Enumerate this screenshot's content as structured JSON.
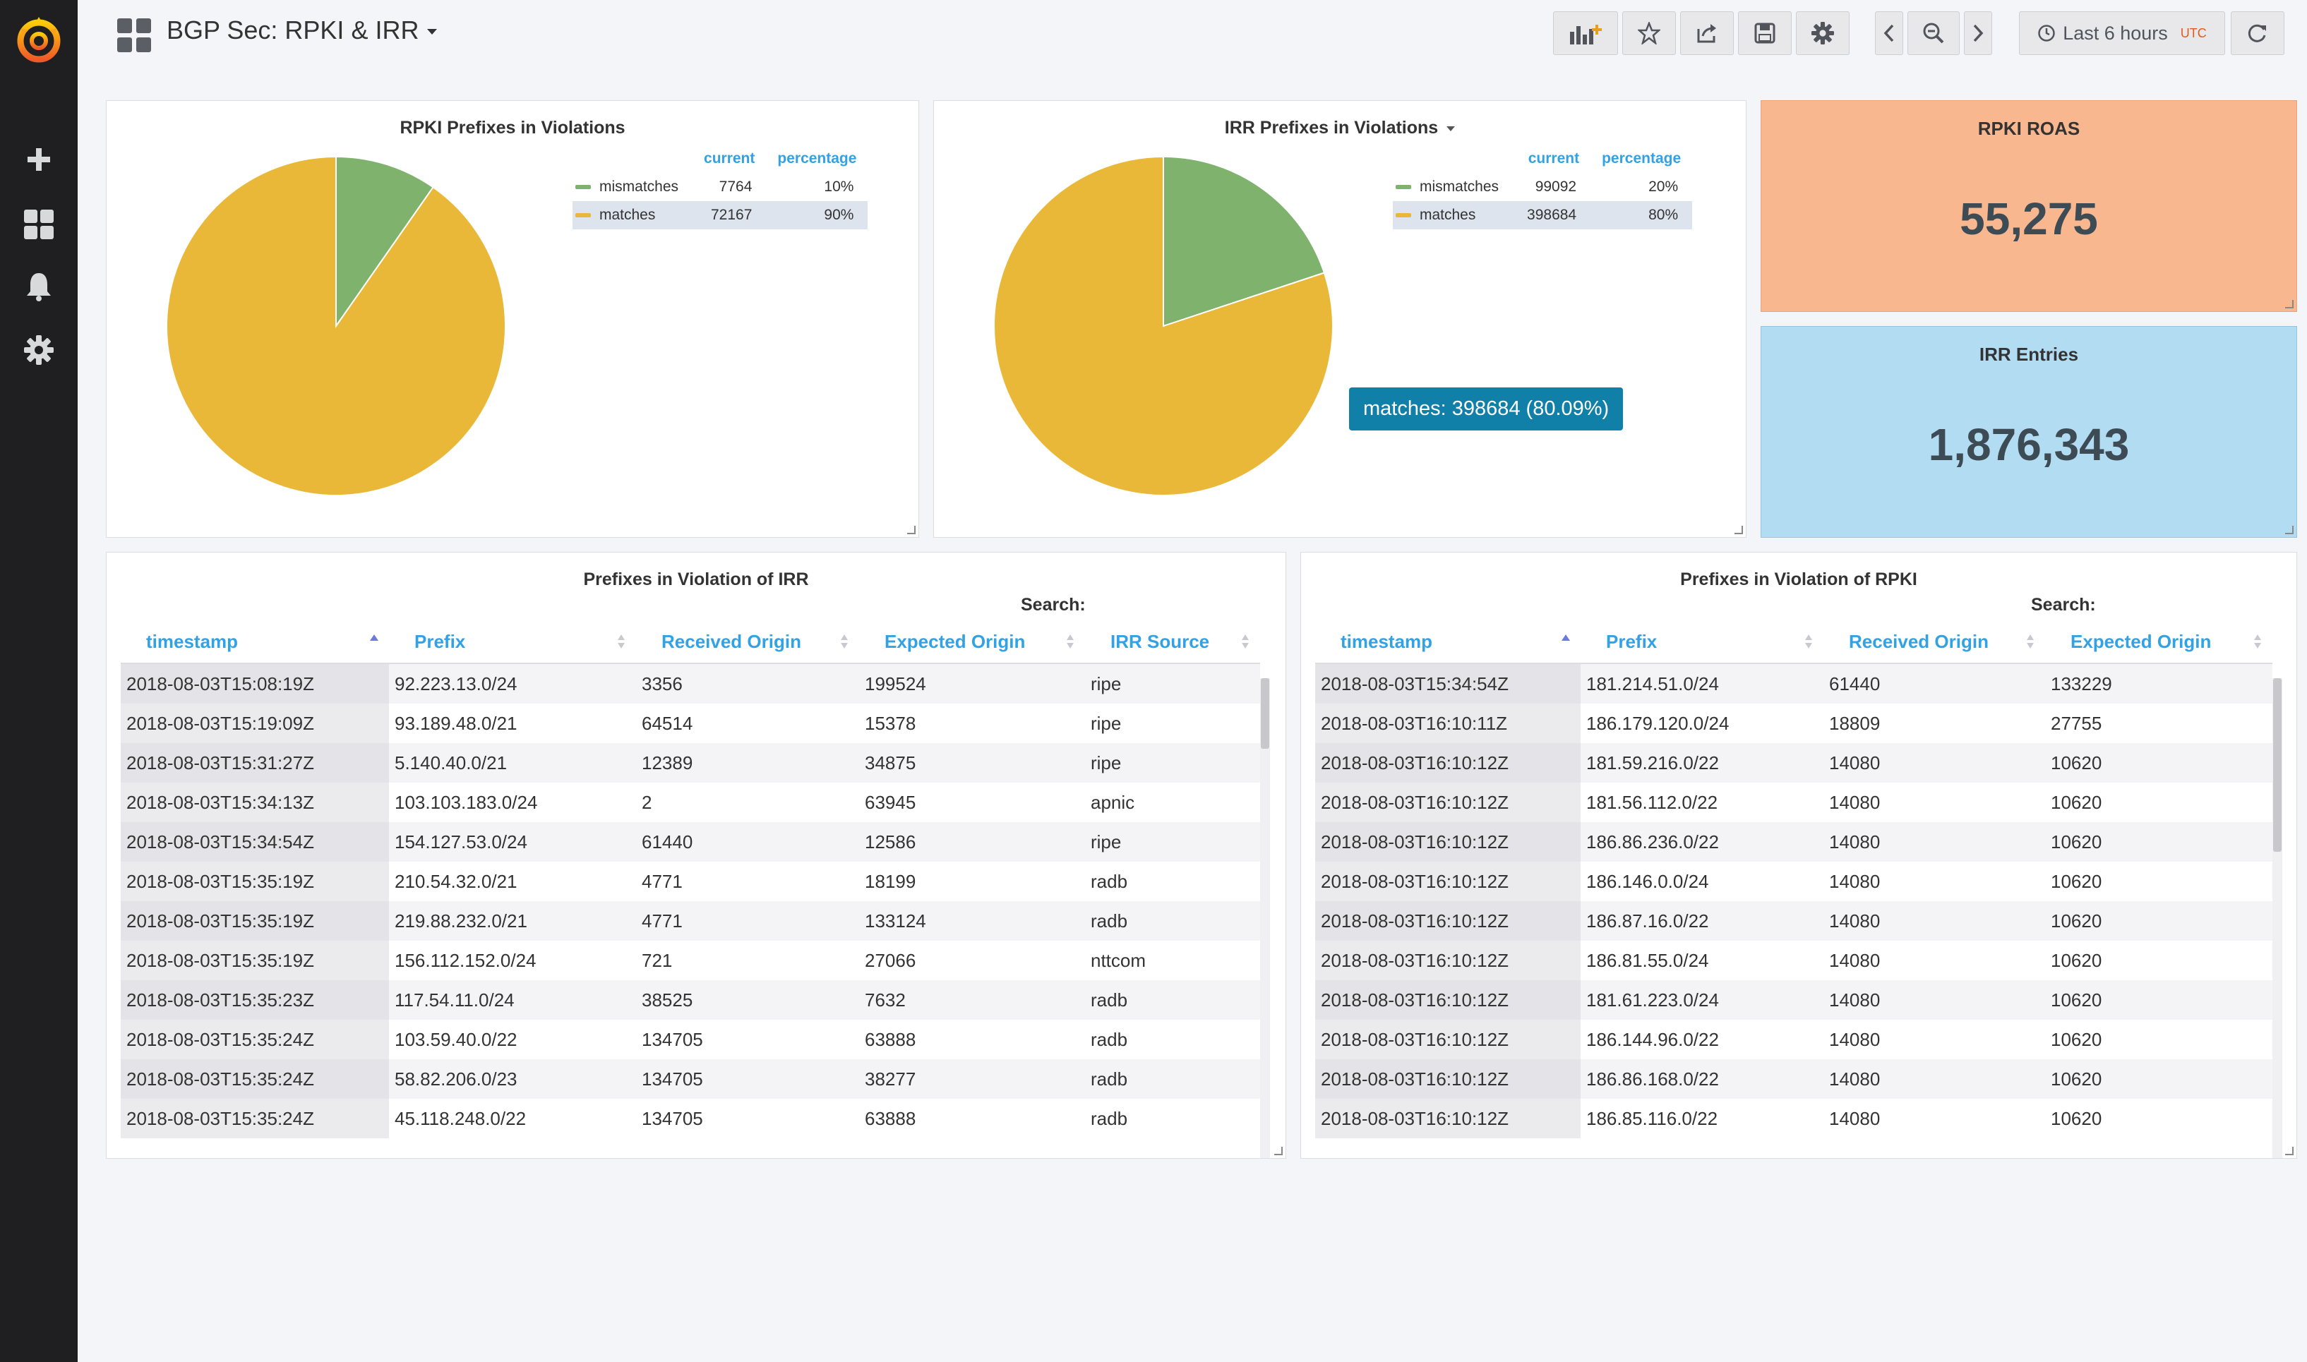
{
  "dashboard": {
    "title": "BGP Sec: RPKI & IRR"
  },
  "toolbar": {
    "time_range": "Last 6 hours",
    "timezone": "UTC"
  },
  "colors": {
    "mismatches": "#7eb26d",
    "matches": "#eab839",
    "accent": "#33a2e5"
  },
  "rpki_pie": {
    "title": "RPKI Prefixes in Violations",
    "col_current": "current",
    "col_percentage": "percentage",
    "chart_data": {
      "type": "pie",
      "slices": [
        {
          "name": "mismatches",
          "value": 7764,
          "percentage": "10%"
        },
        {
          "name": "matches",
          "value": 72167,
          "percentage": "90%"
        }
      ]
    }
  },
  "irr_pie": {
    "title": "IRR Prefixes in Violations",
    "col_current": "current",
    "col_percentage": "percentage",
    "tooltip": "matches: 398684 (80.09%)",
    "chart_data": {
      "type": "pie",
      "slices": [
        {
          "name": "mismatches",
          "value": 99092,
          "percentage": "20%"
        },
        {
          "name": "matches",
          "value": 398684,
          "percentage": "80%"
        }
      ]
    }
  },
  "rpki_roas": {
    "title": "RPKI ROAS",
    "value": "55,275",
    "color": "#f9b78f"
  },
  "irr_entries": {
    "title": "IRR Entries",
    "value": "1,876,343",
    "color": "#b2dcf2"
  },
  "irr_table": {
    "title": "Prefixes in Violation of IRR",
    "search_label": "Search:",
    "headers": [
      "timestamp",
      "Prefix",
      "Received Origin",
      "Expected Origin",
      "IRR Source"
    ],
    "rows": [
      [
        "2018-08-03T15:08:19Z",
        "92.223.13.0/24",
        "3356",
        "199524",
        "ripe"
      ],
      [
        "2018-08-03T15:19:09Z",
        "93.189.48.0/21",
        "64514",
        "15378",
        "ripe"
      ],
      [
        "2018-08-03T15:31:27Z",
        "5.140.40.0/21",
        "12389",
        "34875",
        "ripe"
      ],
      [
        "2018-08-03T15:34:13Z",
        "103.103.183.0/24",
        "2",
        "63945",
        "apnic"
      ],
      [
        "2018-08-03T15:34:54Z",
        "154.127.53.0/24",
        "61440",
        "12586",
        "ripe"
      ],
      [
        "2018-08-03T15:35:19Z",
        "210.54.32.0/21",
        "4771",
        "18199",
        "radb"
      ],
      [
        "2018-08-03T15:35:19Z",
        "219.88.232.0/21",
        "4771",
        "133124",
        "radb"
      ],
      [
        "2018-08-03T15:35:19Z",
        "156.112.152.0/24",
        "721",
        "27066",
        "nttcom"
      ],
      [
        "2018-08-03T15:35:23Z",
        "117.54.11.0/24",
        "38525",
        "7632",
        "radb"
      ],
      [
        "2018-08-03T15:35:24Z",
        "103.59.40.0/22",
        "134705",
        "63888",
        "radb"
      ],
      [
        "2018-08-03T15:35:24Z",
        "58.82.206.0/23",
        "134705",
        "38277",
        "radb"
      ],
      [
        "2018-08-03T15:35:24Z",
        "45.118.248.0/22",
        "134705",
        "63888",
        "radb"
      ]
    ]
  },
  "rpki_table": {
    "title": "Prefixes in Violation of RPKI",
    "search_label": "Search:",
    "headers": [
      "timestamp",
      "Prefix",
      "Received Origin",
      "Expected Origin"
    ],
    "rows": [
      [
        "2018-08-03T15:34:54Z",
        "181.214.51.0/24",
        "61440",
        "133229"
      ],
      [
        "2018-08-03T16:10:11Z",
        "186.179.120.0/24",
        "18809",
        "27755"
      ],
      [
        "2018-08-03T16:10:12Z",
        "181.59.216.0/22",
        "14080",
        "10620"
      ],
      [
        "2018-08-03T16:10:12Z",
        "181.56.112.0/22",
        "14080",
        "10620"
      ],
      [
        "2018-08-03T16:10:12Z",
        "186.86.236.0/22",
        "14080",
        "10620"
      ],
      [
        "2018-08-03T16:10:12Z",
        "186.146.0.0/24",
        "14080",
        "10620"
      ],
      [
        "2018-08-03T16:10:12Z",
        "186.87.16.0/22",
        "14080",
        "10620"
      ],
      [
        "2018-08-03T16:10:12Z",
        "186.81.55.0/24",
        "14080",
        "10620"
      ],
      [
        "2018-08-03T16:10:12Z",
        "181.61.223.0/24",
        "14080",
        "10620"
      ],
      [
        "2018-08-03T16:10:12Z",
        "186.144.96.0/22",
        "14080",
        "10620"
      ],
      [
        "2018-08-03T16:10:12Z",
        "186.86.168.0/22",
        "14080",
        "10620"
      ],
      [
        "2018-08-03T16:10:12Z",
        "186.85.116.0/22",
        "14080",
        "10620"
      ]
    ]
  }
}
